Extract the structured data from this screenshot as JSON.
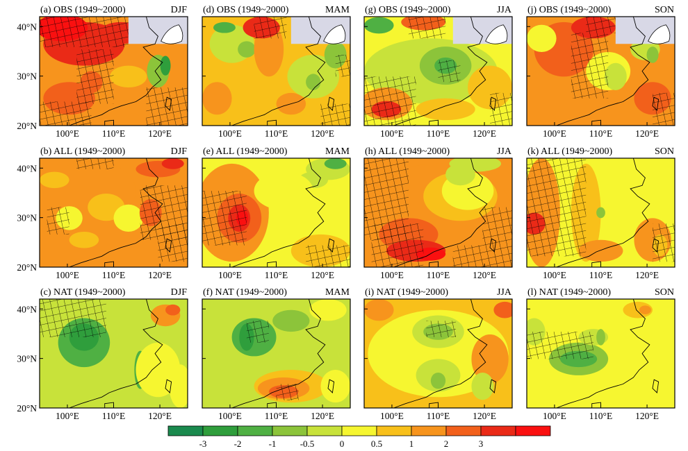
{
  "figure": {
    "panels": [
      {
        "id": "a",
        "title": "(a) OBS (1949~2000)",
        "season": "DJF",
        "scenario": "OBS"
      },
      {
        "id": "b",
        "title": "(b) ALL (1949~2000)",
        "season": "DJF",
        "scenario": "ALL"
      },
      {
        "id": "c",
        "title": "(c) NAT (1949~2000)",
        "season": "DJF",
        "scenario": "NAT"
      },
      {
        "id": "d",
        "title": "(d) OBS (1949~2000)",
        "season": "MAM",
        "scenario": "OBS"
      },
      {
        "id": "e",
        "title": "(e) ALL (1949~2000)",
        "season": "MAM",
        "scenario": "ALL"
      },
      {
        "id": "f",
        "title": "(f) NAT (1949~2000)",
        "season": "MAM",
        "scenario": "NAT"
      },
      {
        "id": "g",
        "title": "(g) OBS (1949~2000)",
        "season": "JJA",
        "scenario": "OBS"
      },
      {
        "id": "h",
        "title": "(h) ALL (1949~2000)",
        "season": "JJA",
        "scenario": "ALL"
      },
      {
        "id": "i",
        "title": "(i) NAT (1949~2000)",
        "season": "JJA",
        "scenario": "NAT"
      },
      {
        "id": "j",
        "title": "(j) OBS (1949~2000)",
        "season": "SON",
        "scenario": "OBS"
      },
      {
        "id": "k",
        "title": "(k) ALL (1949~2000)",
        "season": "SON",
        "scenario": "ALL"
      },
      {
        "id": "l",
        "title": "(l) NAT (1949~2000)",
        "season": "SON",
        "scenario": "NAT"
      }
    ],
    "lat_ticks": [
      "40°N",
      "30°N",
      "20°N"
    ],
    "lon_ticks": [
      "100°E",
      "110°E",
      "120°E"
    ],
    "lon_range": [
      94,
      126
    ],
    "lat_range": [
      20,
      42
    ]
  },
  "colorbar": {
    "labels": [
      "-3",
      "-2",
      "-1",
      "-0.5",
      "0",
      "0.5",
      "1",
      "2",
      "3"
    ],
    "colors": [
      "#1a8a4e",
      "#2f9e3c",
      "#4fb043",
      "#8cc43a",
      "#c8e23a",
      "#f6f630",
      "#f8c01a",
      "#f7941d",
      "#f2601b",
      "#ea2a17",
      "#fa1010"
    ]
  }
}
